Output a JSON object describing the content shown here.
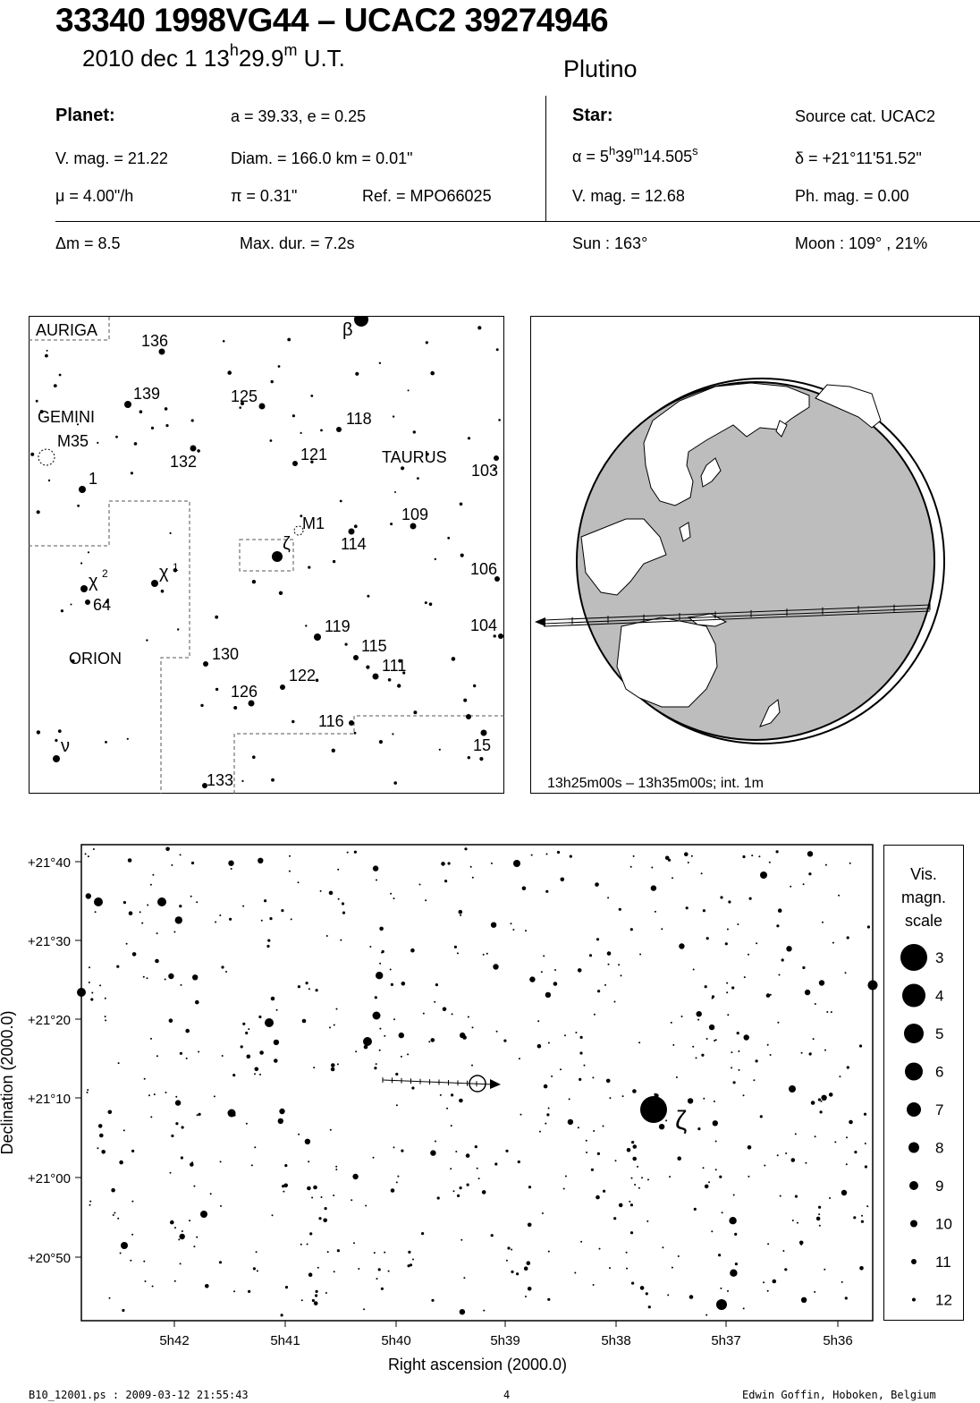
{
  "header": {
    "title": "33340 1998VG44  –  UCAC2 39274946",
    "date_prefix": "2010 dec  1  13",
    "date_h": "h",
    "date_mid": "29.9",
    "date_m": "m",
    "date_suffix": " U.T.",
    "classification": "Plutino"
  },
  "planet": {
    "heading": "Planet:",
    "orbit": "a = 39.33, e = 0.25",
    "vmag": "V. mag. = 21.22",
    "diam": "Diam. = 166.0 km = 0.01\"",
    "mu": "μ =  4.00\"/h",
    "pi": "π =  0.31\"",
    "ref": "Ref. = MPO66025"
  },
  "star": {
    "heading": "Star:",
    "source": "Source cat.  UCAC2",
    "alpha_prefix": "α =  5",
    "alpha_h": "h",
    "alpha_mid": "39",
    "alpha_m": "m",
    "alpha_sec": "14.505",
    "alpha_s": "s",
    "delta": "δ = +21°11'51.52\"",
    "vmag": "V. mag. = 12.68",
    "phmag": "Ph. mag. =  0.00"
  },
  "event": {
    "dm": "Δm = 8.5",
    "maxdur": "Max. dur. = 7.2s",
    "sun": "Sun : 163°",
    "moon": "Moon : 109° , 21%"
  },
  "finder": {
    "constellations": [
      "AURIGA",
      "GEMINI",
      "TAURUS",
      "ORION"
    ],
    "objects": [
      "M35",
      "M1"
    ],
    "greek": [
      "β",
      "ζ",
      "χ",
      "χ",
      "ν"
    ],
    "greek_sup": [
      "2",
      "1"
    ],
    "numbers": [
      "136",
      "139",
      "125",
      "118",
      "121",
      "132",
      "103",
      "1",
      "109",
      "114",
      "106",
      "64",
      "104",
      "119",
      "115",
      "130",
      "111",
      "122",
      "126",
      "116",
      "15",
      "133"
    ]
  },
  "globe": {
    "caption": "13h25m00s – 13h35m00s; int.  1m"
  },
  "chart": {
    "dec_ticks": [
      "+21°40",
      "+21°30",
      "+21°20",
      "+21°10",
      "+21°00",
      "+20°50"
    ],
    "ra_ticks": [
      "5h42",
      "5h41",
      "5h40",
      "5h39",
      "5h38",
      "5h37",
      "5h36"
    ],
    "xlabel": "Right ascension (2000.0)",
    "ylabel": "Declination (2000.0)",
    "zeta": "ζ"
  },
  "scale": {
    "title_lines": [
      "Vis.",
      "magn.",
      "scale"
    ],
    "mags": [
      "3",
      "4",
      "5",
      "6",
      "7",
      "8",
      "9",
      "10",
      "11",
      "12"
    ]
  },
  "footer": {
    "left": "B10_12001.ps : 2009-03-12 21:55:43",
    "page": "4",
    "right": "Edwin Goffin, Hoboken, Belgium"
  }
}
